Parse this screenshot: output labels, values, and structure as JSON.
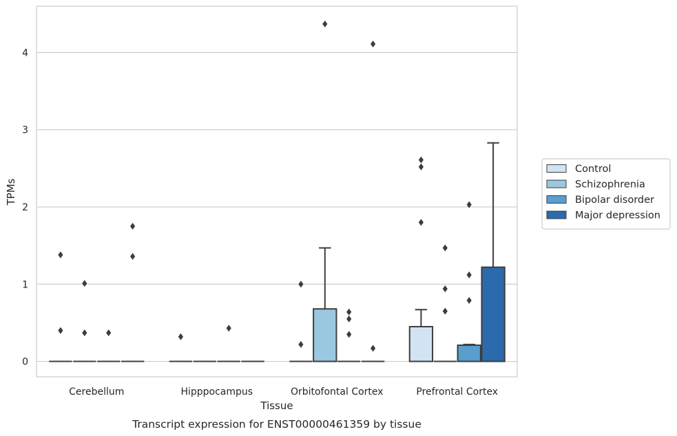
{
  "chart_data": {
    "type": "box",
    "title": "",
    "caption": "Transcript expression for ENST00000461359 by tissue",
    "xlabel": "Tissue",
    "ylabel": "TPMs",
    "ylim": [
      -0.2,
      4.6
    ],
    "yticks": [
      0,
      1,
      2,
      3,
      4
    ],
    "grid": "horizontal",
    "legend_position": "right",
    "categories": [
      "Cerebellum",
      "Hipppocampus",
      "Orbitofontal Cortex",
      "Prefrontal Cortex"
    ],
    "series": [
      {
        "name": "Control",
        "color": "#d2e3f3",
        "boxes": [
          {
            "q1": 0,
            "median": 0,
            "q3": 0,
            "whisker_low": 0,
            "whisker_high": 0,
            "outliers": [
              0.4,
              1.38
            ]
          },
          {
            "q1": 0,
            "median": 0,
            "q3": 0,
            "whisker_low": 0,
            "whisker_high": 0,
            "outliers": [
              0.32
            ]
          },
          {
            "q1": 0,
            "median": 0,
            "q3": 0,
            "whisker_low": 0,
            "whisker_high": 0,
            "outliers": [
              0.22,
              1.0
            ]
          },
          {
            "q1": 0,
            "median": 0,
            "q3": 0.45,
            "whisker_low": 0,
            "whisker_high": 0.67,
            "outliers": [
              1.8,
              2.52,
              2.61
            ]
          }
        ]
      },
      {
        "name": "Schizophrenia",
        "color": "#9ac8e0",
        "boxes": [
          {
            "q1": 0,
            "median": 0,
            "q3": 0,
            "whisker_low": 0,
            "whisker_high": 0,
            "outliers": [
              0.37,
              1.01
            ]
          },
          {
            "q1": 0,
            "median": 0,
            "q3": 0,
            "whisker_low": 0,
            "whisker_high": 0,
            "outliers": []
          },
          {
            "q1": 0,
            "median": 0,
            "q3": 0.68,
            "whisker_low": 0,
            "whisker_high": 1.47,
            "outliers": [
              4.37
            ]
          },
          {
            "q1": 0,
            "median": 0,
            "q3": 0,
            "whisker_low": 0,
            "whisker_high": 0,
            "outliers": [
              0.65,
              0.94,
              1.47
            ]
          }
        ]
      },
      {
        "name": "Bipolar disorder",
        "color": "#5a9ecd",
        "boxes": [
          {
            "q1": 0,
            "median": 0,
            "q3": 0,
            "whisker_low": 0,
            "whisker_high": 0,
            "outliers": [
              0.37
            ]
          },
          {
            "q1": 0,
            "median": 0,
            "q3": 0,
            "whisker_low": 0,
            "whisker_high": 0,
            "outliers": [
              0.43
            ]
          },
          {
            "q1": 0,
            "median": 0,
            "q3": 0,
            "whisker_low": 0,
            "whisker_high": 0,
            "outliers": [
              0.35,
              0.55,
              0.64
            ]
          },
          {
            "q1": 0,
            "median": 0,
            "q3": 0.21,
            "whisker_low": 0,
            "whisker_high": 0.22,
            "outliers": [
              0.79,
              1.12,
              2.03
            ]
          }
        ]
      },
      {
        "name": "Major depression",
        "color": "#2a6aad",
        "boxes": [
          {
            "q1": 0,
            "median": 0,
            "q3": 0,
            "whisker_low": 0,
            "whisker_high": 0,
            "outliers": [
              1.36,
              1.75
            ]
          },
          {
            "q1": 0,
            "median": 0,
            "q3": 0,
            "whisker_low": 0,
            "whisker_high": 0,
            "outliers": []
          },
          {
            "q1": 0,
            "median": 0,
            "q3": 0,
            "whisker_low": 0,
            "whisker_high": 0,
            "outliers": [
              0.17,
              4.11
            ]
          },
          {
            "q1": 0,
            "median": 0,
            "q3": 1.22,
            "whisker_low": 0,
            "whisker_high": 2.83,
            "outliers": []
          }
        ]
      }
    ]
  }
}
